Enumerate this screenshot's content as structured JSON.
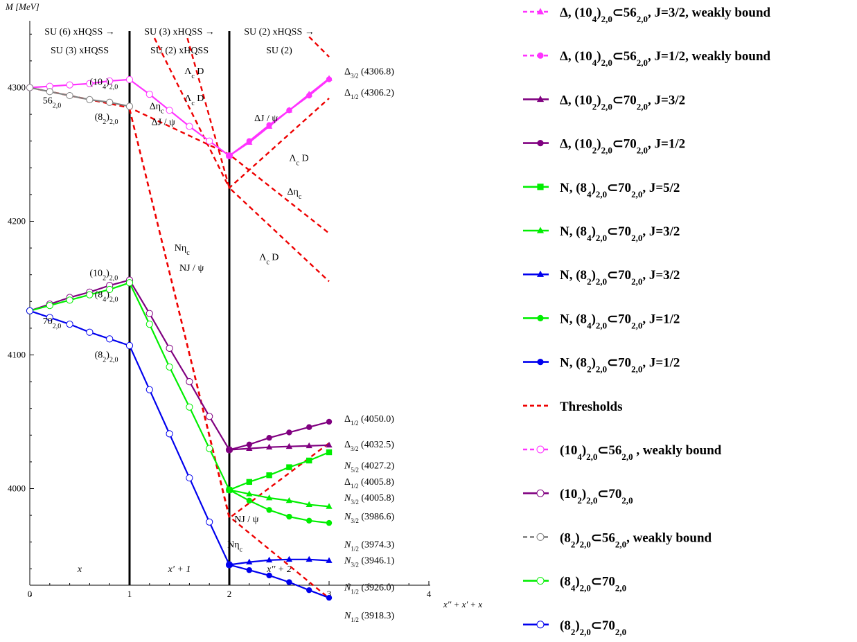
{
  "chart_data": {
    "type": "line",
    "title": "",
    "ylabel": "M [MeV]",
    "xlabel": "x'' + x' + x",
    "xlim": [
      0,
      4
    ],
    "ylim": [
      3910,
      4350
    ],
    "xticks": [
      "0",
      "1",
      "2",
      "3",
      "4"
    ],
    "yticks": [
      "4000",
      "4100",
      "4200",
      "4300"
    ],
    "stage_dividers": [
      1,
      2
    ],
    "stage_headers": [
      {
        "x": 0.5,
        "line1": "SU (6) xHQSS →",
        "line2": "SU (3) xHQSS"
      },
      {
        "x": 1.5,
        "line1": "SU (3) xHQSS →",
        "line2": "SU (2) xHQSS"
      },
      {
        "x": 2.5,
        "line1": "SU (2) xHQSS →",
        "line2": "SU (2)"
      }
    ],
    "stage_labels": [
      {
        "x": 0.5,
        "text": "x"
      },
      {
        "x": 1.5,
        "text": "x' + 1"
      },
      {
        "x": 2.5,
        "text": "x'' + 2"
      }
    ],
    "annotations": [
      {
        "x": 0.13,
        "y": 4288,
        "text": "56",
        "sub": "2,0"
      },
      {
        "x": 0.6,
        "y": 4302,
        "text": "(10",
        "sub": "4",
        "after": ")",
        "sub2": "2,0"
      },
      {
        "x": 0.65,
        "y": 4276,
        "text": "(8",
        "sub": "2",
        "after": ")",
        "sub2": "2,0"
      },
      {
        "x": 0.13,
        "y": 4123,
        "text": "70",
        "sub": "2,0"
      },
      {
        "x": 0.6,
        "y": 4159,
        "text": "(10",
        "sub": "2",
        "after": ")",
        "sub2": "2,0"
      },
      {
        "x": 0.65,
        "y": 4143,
        "text": "(8",
        "sub": "4",
        "after": ")",
        "sub2": "2,0"
      },
      {
        "x": 0.65,
        "y": 4098,
        "text": "(8",
        "sub": "2",
        "after": ")",
        "sub2": "2,0"
      },
      {
        "x": 1.2,
        "y": 4284,
        "text": "Δη",
        "sub": "c"
      },
      {
        "x": 1.22,
        "y": 4272,
        "text": "ΔJ / ψ"
      },
      {
        "x": 1.55,
        "y": 4310,
        "text": "Λ",
        "sub": "c",
        "after": " D"
      },
      {
        "x": 1.55,
        "y": 4290,
        "text": "Λ",
        "sub": "c",
        "after": " D"
      },
      {
        "x": 1.45,
        "y": 4178,
        "text": "Nη",
        "sub": "c"
      },
      {
        "x": 1.5,
        "y": 4163,
        "text": "NJ / ψ"
      },
      {
        "x": 2.25,
        "y": 4275,
        "text": "ΔJ / ψ"
      },
      {
        "x": 2.6,
        "y": 4245,
        "text": "Λ",
        "sub": "c",
        "after": " D"
      },
      {
        "x": 2.58,
        "y": 4220,
        "text": "Δη",
        "sub": "c"
      },
      {
        "x": 2.3,
        "y": 4171,
        "text": "Λ",
        "sub": "c",
        "after": " D"
      },
      {
        "x": 2.05,
        "y": 3975,
        "text": "NJ / ψ"
      },
      {
        "x": 1.98,
        "y": 3956,
        "text": "Nη",
        "sub": "c"
      }
    ],
    "end_labels": [
      {
        "y": 4312,
        "base": "Δ",
        "sub": "3/2",
        "value": " (4306.8)"
      },
      {
        "y": 4296,
        "base": "Δ",
        "sub": "1/2",
        "value": " (4306.2)"
      },
      {
        "y": 4052,
        "base": "Δ",
        "sub": "1/2",
        "value": " (4050.0)"
      },
      {
        "y": 4033,
        "base": "Δ",
        "sub": "3/2",
        "value": " (4032.5)"
      },
      {
        "y": 4017,
        "base": "N",
        "sub": "5/2",
        "value": " (4027.2)"
      },
      {
        "y": 4005,
        "base": "Δ",
        "sub": "1/2",
        "value": " (4005.8)"
      },
      {
        "y": 3993,
        "base": "N",
        "sub": "3/2",
        "value": " (4005.8)"
      },
      {
        "y": 3979,
        "base": "N",
        "sub": "3/2",
        "value": " (3986.6)"
      },
      {
        "y": 3958,
        "base": "N",
        "sub": "1/2",
        "value": " (3974.3)"
      },
      {
        "y": 3946,
        "base": "N",
        "sub": "3/2",
        "value": " (3946.1)"
      },
      {
        "y": 3926,
        "base": "N",
        "sub": "1/2",
        "value": " (3926.0)"
      },
      {
        "y": 3905,
        "base": "N",
        "sub": "1/2",
        "value": " (3918.3)"
      }
    ],
    "series": [
      {
        "name": "Δ, (10_4)_2,0⊂56_2,0, J=3/2, weakly bound",
        "color": "#ff33ff",
        "dash": true,
        "marker": "triangle",
        "x": [
          2,
          2.2,
          2.4,
          2.6,
          2.8,
          3
        ],
        "y": [
          4249,
          4259,
          4271,
          4283,
          4295,
          4306.8
        ]
      },
      {
        "name": "Δ, (10_4)_2,0⊂56_2,0, J=1/2, weakly bound",
        "color": "#ff33ff",
        "dash": true,
        "marker": "circle",
        "x": [
          2,
          2.2,
          2.4,
          2.6,
          2.8,
          3
        ],
        "y": [
          4249,
          4260,
          4272,
          4283,
          4294,
          4306.2
        ]
      },
      {
        "name": "Δ, (10_2)_2,0⊂70_2,0, J=3/2",
        "color": "#800080",
        "marker": "triangle",
        "x": [
          2,
          2.2,
          2.4,
          2.6,
          2.8,
          3
        ],
        "y": [
          4029,
          4030,
          4031,
          4031.5,
          4032,
          4032.5
        ]
      },
      {
        "name": "Δ, (10_2)_2,0⊂70_2,0, J=1/2",
        "color": "#800080",
        "marker": "circle",
        "x": [
          2,
          2.2,
          2.4,
          2.6,
          2.8,
          3
        ],
        "y": [
          4029,
          4033,
          4038,
          4042,
          4046,
          4050.0
        ]
      },
      {
        "name": "N, (8_4)_2,0⊂70_2,0, J=5/2",
        "color": "#00ee00",
        "marker": "square",
        "x": [
          2,
          2.2,
          2.4,
          2.6,
          2.8,
          3
        ],
        "y": [
          3999,
          4005,
          4010,
          4016,
          4021,
          4027.2
        ]
      },
      {
        "name": "N, (8_4)_2,0⊂70_2,0, J=3/2",
        "color": "#00ee00",
        "marker": "triangle",
        "x": [
          2,
          2.2,
          2.4,
          2.6,
          2.8,
          3
        ],
        "y": [
          3999,
          3996,
          3993,
          3991,
          3988,
          3986.6
        ]
      },
      {
        "name": "N, (8_2)_2,0⊂70_2,0, J=3/2",
        "color": "#0000ee",
        "marker": "triangle",
        "x": [
          2,
          2.2,
          2.4,
          2.6,
          2.8,
          3
        ],
        "y": [
          3943,
          3945,
          3946.5,
          3947,
          3947,
          3946.1
        ]
      },
      {
        "name": "N, (8_4)_2,0⊂70_2,0, J=1/2",
        "color": "#00ee00",
        "marker": "circle",
        "x": [
          2,
          2.2,
          2.4,
          2.6,
          2.8,
          3
        ],
        "y": [
          3999,
          3991,
          3984,
          3979,
          3976,
          3974.3
        ]
      },
      {
        "name": "N, (8_2)_2,0⊂70_2,0, J=1/2",
        "color": "#0000ee",
        "marker": "circle",
        "x": [
          2,
          2.2,
          2.4,
          2.6,
          2.8,
          3
        ],
        "y": [
          3943,
          3939,
          3935,
          3930,
          3924,
          3918.3
        ]
      },
      {
        "name": "Thresholds",
        "color": "#ee0000",
        "dash": true,
        "marker": "none",
        "segments": [
          {
            "x": [
              0,
              1,
              2,
              3
            ],
            "y": [
              4300,
              4285,
              4250,
              4191
            ]
          },
          {
            "x": [
              1,
              2,
              3
            ],
            "y": [
              4284,
              3978,
              4034
            ]
          },
          {
            "x": [
              1.25,
              2,
              3
            ],
            "y": [
              4337,
              4225,
              4292
            ]
          },
          {
            "x": [
              1.58,
              2,
              3
            ],
            "y": [
              4337,
              4225,
              4155
            ]
          },
          {
            "x": [
              1,
              2,
              3
            ],
            "y": [
              4284,
              3979,
              3918
            ]
          },
          {
            "x": [
              2.8,
              3
            ],
            "y": [
              4338,
              4323
            ]
          }
        ]
      },
      {
        "name": "(10_4)_2,0⊂56_2,0 , weakly bound",
        "color": "#ff33ff",
        "dash": true,
        "marker": "open-circle",
        "x": [
          0,
          0.2,
          0.4,
          0.6,
          0.8,
          1,
          1.2,
          1.4,
          1.6,
          1.8,
          2
        ],
        "y": [
          4300,
          4301,
          4302,
          4303,
          4305,
          4306,
          4295,
          4283,
          4271,
          4260,
          4249
        ]
      },
      {
        "name": "(10_2)_2,0⊂70_2,0",
        "color": "#800080",
        "marker": "open-circle",
        "x": [
          0,
          0.2,
          0.4,
          0.6,
          0.8,
          1,
          1.2,
          1.4,
          1.6,
          1.8,
          2
        ],
        "y": [
          4133,
          4138,
          4143,
          4147,
          4152,
          4156,
          4131,
          4105,
          4080,
          4054,
          4029
        ]
      },
      {
        "name": "(8_2)_2,0⊂56_2,0, weakly bound",
        "color": "#808080",
        "dash": true,
        "marker": "open-circle",
        "x": [
          0,
          0.2,
          0.4,
          0.6,
          0.8,
          1
        ],
        "y": [
          4300,
          4297,
          4294,
          4291,
          4289,
          4286
        ]
      },
      {
        "name": "(8_4)_2,0⊂70_2,0",
        "color": "#00ee00",
        "marker": "open-circle",
        "x": [
          0,
          0.2,
          0.4,
          0.6,
          0.8,
          1,
          1.2,
          1.4,
          1.6,
          1.8,
          2
        ],
        "y": [
          4133,
          4137,
          4141,
          4145,
          4149,
          4154,
          4123,
          4091,
          4061,
          4030,
          3999
        ]
      },
      {
        "name": "(8_2)_2,0⊂70_2,0",
        "color": "#0000ee",
        "marker": "open-circle",
        "x": [
          0,
          0.2,
          0.4,
          0.6,
          0.8,
          1,
          1.2,
          1.4,
          1.6,
          1.8,
          2
        ],
        "y": [
          4133,
          4128,
          4123,
          4117,
          4112,
          4107,
          4074,
          4041,
          4008,
          3975,
          3943
        ]
      }
    ],
    "legend": {
      "placement": "right",
      "entries": [
        {
          "color": "#ff33ff",
          "dash": true,
          "marker": "triangle",
          "parts": [
            "Δ, (10",
            "4",
            ")",
            "2,0",
            "⊂56",
            "2,0",
            ", J=3/2, weakly bound"
          ]
        },
        {
          "color": "#ff33ff",
          "dash": true,
          "marker": "circle",
          "parts": [
            "Δ, (10",
            "4",
            ")",
            "2,0",
            "⊂56",
            "2,0",
            ", J=1/2, weakly bound"
          ]
        },
        {
          "color": "#800080",
          "marker": "triangle",
          "parts": [
            "Δ, (10",
            "2",
            ")",
            "2,0",
            "⊂70",
            "2,0",
            ", J=3/2"
          ]
        },
        {
          "color": "#800080",
          "marker": "circle",
          "parts": [
            "Δ, (10",
            "2",
            ")",
            "2,0",
            "⊂70",
            "2,0",
            ", J=1/2"
          ]
        },
        {
          "color": "#00ee00",
          "marker": "square",
          "parts": [
            "N, (8",
            "4",
            ")",
            "2,0",
            "⊂70",
            "2,0",
            ", J=5/2"
          ]
        },
        {
          "color": "#00ee00",
          "marker": "triangle",
          "parts": [
            "N, (8",
            "4",
            ")",
            "2,0",
            "⊂70",
            "2,0",
            ", J=3/2"
          ]
        },
        {
          "color": "#0000ee",
          "marker": "triangle",
          "parts": [
            "N, (8",
            "2",
            ")",
            "2,0",
            "⊂70",
            "2,0",
            ", J=3/2"
          ]
        },
        {
          "color": "#00ee00",
          "marker": "circle",
          "parts": [
            "N, (8",
            "4",
            ")",
            "2,0",
            "⊂70",
            "2,0",
            ", J=1/2"
          ]
        },
        {
          "color": "#0000ee",
          "marker": "circle",
          "parts": [
            "N, (8",
            "2",
            ")",
            "2,0",
            "⊂70",
            "2,0",
            ", J=1/2"
          ]
        },
        {
          "color": "#ee0000",
          "dash": true,
          "marker": "none",
          "parts": [
            "Thresholds"
          ]
        },
        {
          "color": "#ff33ff",
          "dash": true,
          "marker": "open-circle",
          "parts": [
            "(10",
            "4",
            ")",
            "2,0",
            "⊂56",
            "2,0",
            " , weakly bound"
          ]
        },
        {
          "color": "#800080",
          "marker": "open-circle",
          "parts": [
            "(10",
            "2",
            ")",
            "2,0",
            "⊂70",
            "2,0",
            ""
          ]
        },
        {
          "color": "#808080",
          "dash": true,
          "marker": "open-circle",
          "parts": [
            "(8",
            "2",
            ")",
            "2,0",
            "⊂56",
            "2,0",
            ", weakly bound"
          ]
        },
        {
          "color": "#00ee00",
          "marker": "open-circle",
          "parts": [
            "(8",
            "4",
            ")",
            "2,0",
            "⊂70",
            "2,0",
            ""
          ]
        },
        {
          "color": "#0000ee",
          "marker": "open-circle",
          "parts": [
            "(8",
            "2",
            ")",
            "2,0",
            "⊂70",
            "2,0",
            ""
          ]
        }
      ]
    }
  }
}
